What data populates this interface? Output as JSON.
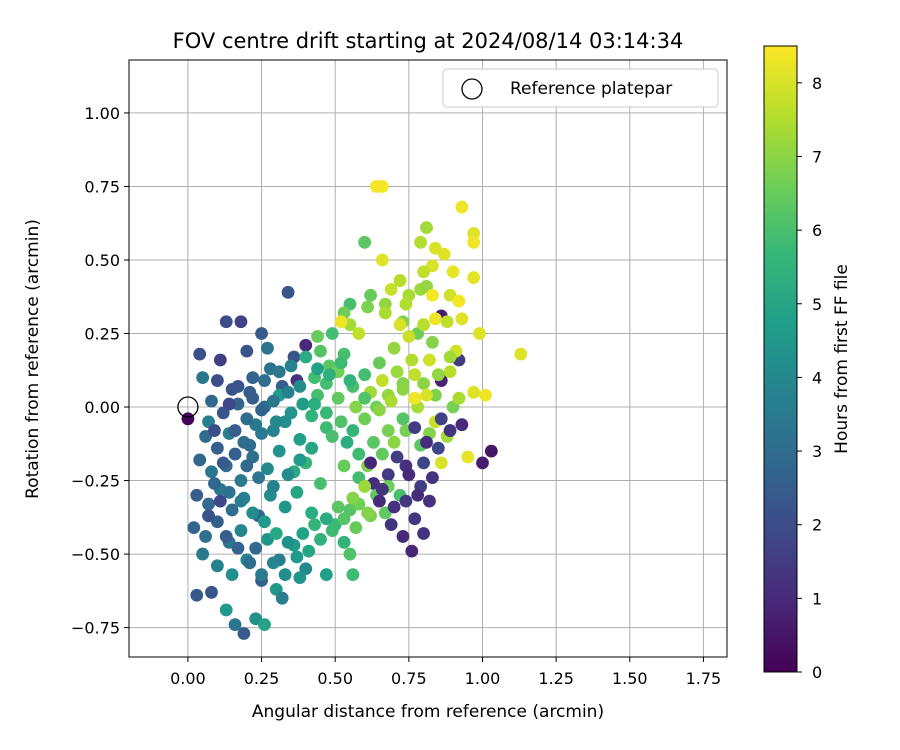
{
  "chart_data": {
    "type": "scatter",
    "title": "FOV centre drift starting at 2024/08/14 03:14:34",
    "xlabel": "Angular distance from reference (arcmin)",
    "ylabel": "Rotation from reference (arcmin)",
    "xlim": [
      -0.2,
      1.83
    ],
    "ylim": [
      -0.85,
      1.18
    ],
    "xticks": [
      "0.00",
      "0.25",
      "0.50",
      "0.75",
      "1.00",
      "1.25",
      "1.50",
      "1.75"
    ],
    "xtick_values": [
      0,
      0.25,
      0.5,
      0.75,
      1.0,
      1.25,
      1.5,
      1.75
    ],
    "yticks": [
      "−0.75",
      "−0.50",
      "−0.25",
      "0.00",
      "0.25",
      "0.50",
      "0.75",
      "1.00"
    ],
    "ytick_values": [
      -0.75,
      -0.5,
      -0.25,
      0,
      0.25,
      0.5,
      0.75,
      1.0
    ],
    "grid": true,
    "legend": {
      "placement": "top-right",
      "label": "Reference platepar",
      "marker": "open-circle"
    },
    "reference_point": {
      "x": 0.0,
      "y": 0.0
    },
    "colorbar": {
      "label": "Hours from first FF file",
      "range": [
        0,
        8.5
      ],
      "ticks": [
        "0",
        "1",
        "2",
        "3",
        "4",
        "5",
        "6",
        "7",
        "8"
      ],
      "tick_values": [
        0,
        1,
        2,
        3,
        4,
        5,
        6,
        7,
        8
      ],
      "colormap": "viridis",
      "stops": [
        "#440154",
        "#482878",
        "#3e4989",
        "#31688e",
        "#26828e",
        "#1f9e89",
        "#35b779",
        "#6ece58",
        "#b5de2b",
        "#fde725"
      ]
    },
    "points": [
      [
        0.0,
        -0.04,
        0.12
      ],
      [
        0.05,
        0.1,
        3.4
      ],
      [
        0.04,
        0.18,
        2.1
      ],
      [
        0.13,
        0.29,
        2.0
      ],
      [
        0.18,
        0.29,
        1.7
      ],
      [
        0.25,
        0.25,
        2.4
      ],
      [
        0.34,
        0.39,
        2.3
      ],
      [
        0.11,
        0.16,
        1.6
      ],
      [
        0.2,
        0.19,
        2.2
      ],
      [
        0.27,
        0.2,
        3.3
      ],
      [
        0.36,
        0.17,
        2.2
      ],
      [
        0.1,
        0.09,
        2.0
      ],
      [
        0.08,
        0.02,
        2.8
      ],
      [
        0.15,
        0.06,
        2.2
      ],
      [
        0.21,
        0.05,
        2.5
      ],
      [
        0.28,
        0.13,
        3.2
      ],
      [
        0.32,
        0.07,
        2.6
      ],
      [
        0.4,
        0.21,
        1.0
      ],
      [
        0.45,
        0.19,
        6.2
      ],
      [
        0.44,
        0.24,
        6.5
      ],
      [
        0.07,
        -0.05,
        3.7
      ],
      [
        0.12,
        -0.02,
        2.2
      ],
      [
        0.17,
        0.01,
        2.7
      ],
      [
        0.22,
        0.03,
        2.5
      ],
      [
        0.26,
        0.0,
        3.1
      ],
      [
        0.31,
        0.04,
        4.7
      ],
      [
        0.37,
        0.09,
        1.2
      ],
      [
        0.43,
        0.1,
        5.9
      ],
      [
        0.48,
        0.14,
        6.3
      ],
      [
        0.53,
        0.18,
        6.0
      ],
      [
        0.06,
        -0.1,
        3.0
      ],
      [
        0.1,
        -0.14,
        2.6
      ],
      [
        0.14,
        -0.09,
        3.6
      ],
      [
        0.19,
        -0.12,
        3.0
      ],
      [
        0.23,
        -0.06,
        3.4
      ],
      [
        0.29,
        -0.08,
        3.8
      ],
      [
        0.33,
        -0.05,
        4.2
      ],
      [
        0.38,
        -0.11,
        4.8
      ],
      [
        0.42,
        -0.03,
        5.5
      ],
      [
        0.47,
        -0.07,
        5.8
      ],
      [
        0.04,
        -0.18,
        2.8
      ],
      [
        0.08,
        -0.22,
        3.3
      ],
      [
        0.13,
        -0.2,
        2.9
      ],
      [
        0.18,
        -0.25,
        3.5
      ],
      [
        0.22,
        -0.17,
        3.1
      ],
      [
        0.27,
        -0.21,
        4.0
      ],
      [
        0.31,
        -0.15,
        4.4
      ],
      [
        0.36,
        -0.22,
        5.2
      ],
      [
        0.4,
        -0.19,
        5.6
      ],
      [
        0.45,
        -0.26,
        6.0
      ],
      [
        0.03,
        -0.3,
        2.5
      ],
      [
        0.07,
        -0.33,
        2.9
      ],
      [
        0.11,
        -0.28,
        3.4
      ],
      [
        0.15,
        -0.35,
        3.0
      ],
      [
        0.19,
        -0.31,
        3.8
      ],
      [
        0.24,
        -0.37,
        2.8
      ],
      [
        0.28,
        -0.3,
        4.1
      ],
      [
        0.33,
        -0.34,
        4.5
      ],
      [
        0.37,
        -0.29,
        5.0
      ],
      [
        0.42,
        -0.36,
        5.3
      ],
      [
        0.02,
        -0.41,
        2.7
      ],
      [
        0.06,
        -0.44,
        3.1
      ],
      [
        0.1,
        -0.39,
        2.6
      ],
      [
        0.14,
        -0.46,
        3.3
      ],
      [
        0.18,
        -0.42,
        3.9
      ],
      [
        0.23,
        -0.48,
        2.9
      ],
      [
        0.27,
        -0.45,
        4.4
      ],
      [
        0.31,
        -0.52,
        3.6
      ],
      [
        0.36,
        -0.47,
        4.7
      ],
      [
        0.4,
        -0.55,
        4.0
      ],
      [
        0.05,
        -0.5,
        3.4
      ],
      [
        0.1,
        -0.54,
        3.7
      ],
      [
        0.15,
        -0.57,
        4.2
      ],
      [
        0.2,
        -0.52,
        3.8
      ],
      [
        0.25,
        -0.59,
        2.6
      ],
      [
        0.3,
        -0.62,
        4.5
      ],
      [
        0.08,
        -0.63,
        2.3
      ],
      [
        0.13,
        -0.69,
        4.6
      ],
      [
        0.16,
        -0.74,
        3.3
      ],
      [
        0.19,
        -0.77,
        2.5
      ],
      [
        0.23,
        -0.72,
        4.3
      ],
      [
        0.26,
        -0.74,
        5.0
      ],
      [
        0.03,
        -0.64,
        2.4
      ],
      [
        0.32,
        -0.65,
        3.6
      ],
      [
        0.38,
        -0.58,
        4.4
      ],
      [
        0.47,
        -0.57,
        4.8
      ],
      [
        0.56,
        -0.57,
        5.8
      ],
      [
        0.55,
        -0.5,
        6.1
      ],
      [
        0.53,
        -0.46,
        5.5
      ],
      [
        0.5,
        -0.4,
        5.7
      ],
      [
        0.55,
        -0.35,
        6.2
      ],
      [
        0.58,
        -0.33,
        6.6
      ],
      [
        0.62,
        -0.37,
        6.8
      ],
      [
        0.67,
        -0.36,
        6.4
      ],
      [
        0.72,
        -0.3,
        6.0
      ],
      [
        0.69,
        -0.4,
        1.3
      ],
      [
        0.73,
        -0.44,
        1.0
      ],
      [
        0.76,
        -0.49,
        0.9
      ],
      [
        0.8,
        -0.43,
        1.2
      ],
      [
        0.77,
        -0.38,
        1.4
      ],
      [
        0.63,
        -0.26,
        1.1
      ],
      [
        0.68,
        -0.23,
        1.5
      ],
      [
        0.74,
        -0.2,
        1.2
      ],
      [
        0.79,
        -0.27,
        1.6
      ],
      [
        0.83,
        -0.24,
        1.3
      ],
      [
        0.85,
        -0.14,
        1.8
      ],
      [
        0.88,
        -0.1,
        7.3
      ],
      [
        0.93,
        -0.06,
        1.0
      ],
      [
        0.95,
        -0.17,
        8.2
      ],
      [
        1.0,
        -0.19,
        0.7
      ],
      [
        1.03,
        -0.15,
        0.5
      ],
      [
        0.86,
        -0.19,
        8.0
      ],
      [
        0.84,
        -0.05,
        7.8
      ],
      [
        0.9,
        0.0,
        6.7
      ],
      [
        0.92,
        0.03,
        7.4
      ],
      [
        0.97,
        0.05,
        8.1
      ],
      [
        1.01,
        0.04,
        8.3
      ],
      [
        0.86,
        0.09,
        0.8
      ],
      [
        0.89,
        0.12,
        7.6
      ],
      [
        0.92,
        0.16,
        1.5
      ],
      [
        0.91,
        0.19,
        7.9
      ],
      [
        0.86,
        0.31,
        0.7
      ],
      [
        0.83,
        0.22,
        6.9
      ],
      [
        0.78,
        0.25,
        6.6
      ],
      [
        0.73,
        0.29,
        6.9
      ],
      [
        0.7,
        0.2,
        7.1
      ],
      [
        0.65,
        0.15,
        6.5
      ],
      [
        0.6,
        0.11,
        5.9
      ],
      [
        0.56,
        0.07,
        6.0
      ],
      [
        0.51,
        0.03,
        6.4
      ],
      [
        0.57,
        0.0,
        6.9
      ],
      [
        0.62,
        0.05,
        7.3
      ],
      [
        0.66,
        0.09,
        7.7
      ],
      [
        0.71,
        0.12,
        7.2
      ],
      [
        0.76,
        0.16,
        7.5
      ],
      [
        0.8,
        0.08,
        7.0
      ],
      [
        0.84,
        0.04,
        6.8
      ],
      [
        0.78,
        0.0,
        7.4
      ],
      [
        0.73,
        -0.04,
        6.2
      ],
      [
        0.68,
        -0.08,
        6.7
      ],
      [
        0.63,
        -0.12,
        6.3
      ],
      [
        0.58,
        -0.16,
        5.8
      ],
      [
        0.54,
        -0.12,
        5.3
      ],
      [
        0.49,
        -0.1,
        6.0
      ],
      [
        0.53,
        -0.2,
        6.5
      ],
      [
        0.58,
        -0.24,
        5.9
      ],
      [
        0.61,
        -0.2,
        6.8
      ],
      [
        0.66,
        -0.16,
        6.4
      ],
      [
        0.7,
        -0.12,
        7.0
      ],
      [
        0.74,
        -0.08,
        6.7
      ],
      [
        0.79,
        -0.13,
        6.3
      ],
      [
        0.82,
        -0.09,
        6.9
      ],
      [
        0.64,
        0.75,
        8.4
      ],
      [
        0.66,
        0.75,
        8.4
      ],
      [
        0.93,
        0.68,
        8.3
      ],
      [
        0.97,
        0.59,
        8.1
      ],
      [
        0.97,
        0.56,
        8.3
      ],
      [
        0.81,
        0.61,
        7.3
      ],
      [
        0.79,
        0.56,
        7.5
      ],
      [
        0.6,
        0.56,
        6.3
      ],
      [
        0.66,
        0.5,
        8.1
      ],
      [
        0.84,
        0.54,
        8.0
      ],
      [
        0.87,
        0.52,
        8.1
      ],
      [
        0.9,
        0.46,
        8.2
      ],
      [
        0.83,
        0.48,
        8.0
      ],
      [
        0.8,
        0.46,
        7.7
      ],
      [
        0.72,
        0.43,
        7.6
      ],
      [
        0.69,
        0.4,
        7.8
      ],
      [
        0.75,
        0.38,
        7.4
      ],
      [
        0.79,
        0.4,
        7.2
      ],
      [
        0.81,
        0.41,
        7.1
      ],
      [
        0.97,
        0.44,
        8.2
      ],
      [
        0.89,
        0.38,
        7.9
      ],
      [
        0.92,
        0.36,
        8.4
      ],
      [
        0.83,
        0.38,
        8.4
      ],
      [
        0.74,
        0.35,
        7.5
      ],
      [
        0.67,
        0.35,
        7.1
      ],
      [
        0.62,
        0.38,
        6.5
      ],
      [
        0.61,
        0.34,
        6.8
      ],
      [
        0.55,
        0.35,
        6.0
      ],
      [
        0.53,
        0.32,
        6.6
      ],
      [
        0.55,
        0.28,
        7.3
      ],
      [
        0.58,
        0.25,
        7.7
      ],
      [
        0.52,
        0.29,
        8.3
      ],
      [
        0.49,
        0.25,
        5.9
      ],
      [
        0.67,
        0.32,
        7.4
      ],
      [
        0.72,
        0.28,
        8.0
      ],
      [
        0.75,
        0.24,
        7.8
      ],
      [
        0.8,
        0.28,
        7.6
      ],
      [
        0.84,
        0.3,
        8.3
      ],
      [
        0.88,
        0.29,
        7.7
      ],
      [
        0.93,
        0.3,
        8.1
      ],
      [
        0.99,
        0.25,
        8.1
      ],
      [
        1.13,
        0.18,
        8.1
      ],
      [
        0.89,
        0.17,
        7.3
      ],
      [
        0.82,
        0.16,
        7.9
      ],
      [
        0.85,
        0.11,
        7.1
      ],
      [
        0.77,
        0.11,
        7.7
      ],
      [
        0.81,
        0.04,
        8.0
      ],
      [
        0.77,
        0.03,
        8.3
      ],
      [
        0.73,
        0.08,
        6.9
      ],
      [
        0.68,
        0.04,
        7.1
      ],
      [
        0.64,
        0.0,
        6.6
      ],
      [
        0.6,
        0.03,
        6.1
      ],
      [
        0.55,
        0.09,
        5.5
      ],
      [
        0.51,
        0.12,
        6.6
      ],
      [
        0.47,
        0.08,
        5.9
      ],
      [
        0.44,
        0.04,
        6.0
      ],
      [
        0.39,
        0.01,
        4.7
      ],
      [
        0.35,
        -0.02,
        4.4
      ],
      [
        0.3,
        -0.05,
        4.0
      ],
      [
        0.25,
        -0.09,
        3.5
      ],
      [
        0.21,
        -0.13,
        3.0
      ],
      [
        0.16,
        -0.16,
        2.6
      ],
      [
        0.12,
        -0.19,
        2.4
      ],
      [
        0.09,
        -0.26,
        2.8
      ],
      [
        0.14,
        -0.29,
        3.2
      ],
      [
        0.18,
        -0.32,
        3.6
      ],
      [
        0.22,
        -0.36,
        4.1
      ],
      [
        0.26,
        -0.39,
        4.6
      ],
      [
        0.3,
        -0.43,
        5.1
      ],
      [
        0.34,
        -0.46,
        4.3
      ],
      [
        0.39,
        -0.43,
        4.9
      ],
      [
        0.43,
        -0.4,
        5.6
      ],
      [
        0.47,
        -0.38,
        5.2
      ],
      [
        0.51,
        -0.34,
        6.3
      ],
      [
        0.56,
        -0.31,
        6.9
      ],
      [
        0.6,
        -0.27,
        7.2
      ],
      [
        0.64,
        -0.3,
        6.4
      ],
      [
        0.68,
        -0.27,
        6.6
      ],
      [
        0.42,
        -0.14,
        5.0
      ],
      [
        0.38,
        -0.18,
        4.6
      ],
      [
        0.34,
        -0.23,
        4.1
      ],
      [
        0.29,
        -0.27,
        3.8
      ],
      [
        0.24,
        -0.24,
        3.3
      ],
      [
        0.2,
        -0.2,
        2.9
      ],
      [
        0.16,
        -0.08,
        2.5
      ],
      [
        0.2,
        -0.04,
        3.0
      ],
      [
        0.25,
        -0.01,
        2.7
      ],
      [
        0.29,
        0.02,
        3.3
      ],
      [
        0.34,
        0.05,
        3.7
      ],
      [
        0.38,
        0.07,
        4.1
      ],
      [
        0.43,
        0.01,
        5.3
      ],
      [
        0.47,
        -0.02,
        5.7
      ],
      [
        0.52,
        -0.05,
        6.1
      ],
      [
        0.56,
        -0.08,
        5.6
      ],
      [
        0.6,
        -0.04,
        6.6
      ],
      [
        0.65,
        -0.01,
        7.0
      ],
      [
        0.69,
        0.02,
        7.4
      ],
      [
        0.73,
        0.06,
        7.0
      ],
      [
        0.14,
        0.01,
        1.9
      ],
      [
        0.17,
        0.07,
        2.3
      ],
      [
        0.22,
        0.1,
        2.7
      ],
      [
        0.26,
        0.09,
        3.0
      ],
      [
        0.31,
        0.12,
        3.4
      ],
      [
        0.35,
        0.14,
        3.8
      ],
      [
        0.4,
        0.17,
        5.2
      ],
      [
        0.44,
        0.13,
        4.9
      ],
      [
        0.48,
        0.11,
        5.4
      ],
      [
        0.52,
        0.15,
        5.8
      ],
      [
        0.09,
        -0.08,
        2.0
      ],
      [
        0.11,
        -0.32,
        1.9
      ],
      [
        0.07,
        -0.37,
        2.2
      ],
      [
        0.13,
        -0.44,
        2.5
      ],
      [
        0.17,
        -0.48,
        2.7
      ],
      [
        0.21,
        -0.53,
        3.1
      ],
      [
        0.25,
        -0.57,
        3.5
      ],
      [
        0.29,
        -0.53,
        3.9
      ],
      [
        0.33,
        -0.57,
        4.2
      ],
      [
        0.37,
        -0.51,
        4.6
      ],
      [
        0.41,
        -0.49,
        5.0
      ],
      [
        0.45,
        -0.45,
        5.4
      ],
      [
        0.49,
        -0.42,
        5.8
      ],
      [
        0.53,
        -0.38,
        6.2
      ],
      [
        0.57,
        -0.41,
        6.5
      ],
      [
        0.61,
        -0.36,
        6.9
      ],
      [
        0.65,
        -0.32,
        1.0
      ],
      [
        0.7,
        -0.34,
        1.2
      ],
      [
        0.74,
        -0.32,
        1.4
      ],
      [
        0.78,
        -0.3,
        1.1
      ],
      [
        0.62,
        -0.19,
        0.9
      ],
      [
        0.66,
        -0.28,
        1.3
      ],
      [
        0.71,
        -0.17,
        1.6
      ],
      [
        0.75,
        -0.23,
        1.0
      ],
      [
        0.8,
        -0.19,
        1.8
      ],
      [
        0.82,
        -0.32,
        1.2
      ],
      [
        0.77,
        -0.07,
        1.5
      ],
      [
        0.81,
        -0.12,
        1.1
      ],
      [
        0.86,
        -0.04,
        1.7
      ],
      [
        0.89,
        -0.08,
        1.3
      ]
    ]
  }
}
